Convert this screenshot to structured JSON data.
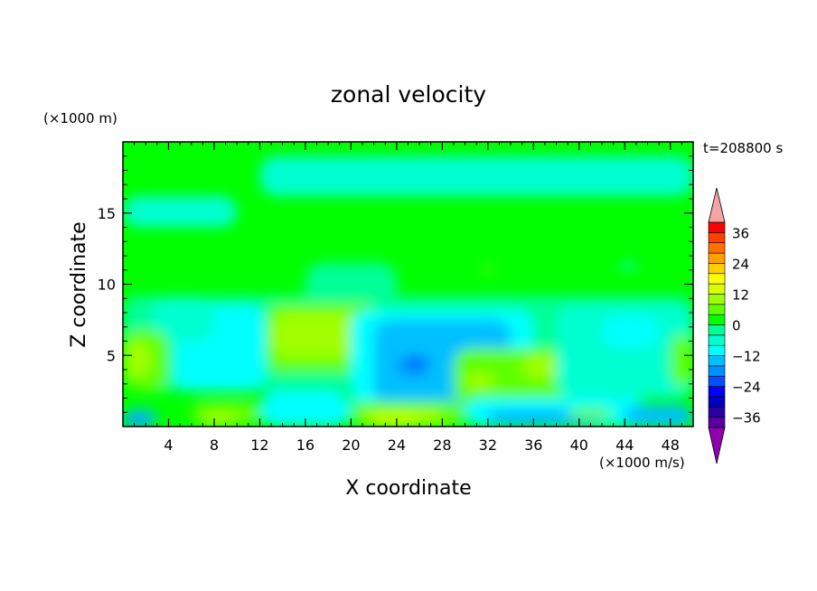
{
  "chart_data": {
    "type": "heatmap",
    "title": "zonal velocity",
    "xlabel": "X coordinate",
    "ylabel": "Z coordinate",
    "x_unit": "(×1000 m/s)",
    "y_unit": "(×1000 m)",
    "time_label": "t=208800 s",
    "xlim": [
      0,
      50
    ],
    "ylim": [
      0,
      20
    ],
    "x_ticks": [
      4,
      8,
      12,
      16,
      20,
      24,
      28,
      32,
      36,
      40,
      44,
      48
    ],
    "y_ticks": [
      5,
      10,
      15
    ],
    "colorbar": {
      "levels": [
        -40,
        -36,
        -32,
        -28,
        -24,
        -20,
        -16,
        -12,
        -8,
        -4,
        0,
        4,
        8,
        12,
        16,
        20,
        24,
        28,
        32,
        36,
        40
      ],
      "tick_labels": [
        36,
        24,
        12,
        0,
        -12,
        -24,
        -36
      ],
      "colors": [
        "#5a00a0",
        "#2a00a0",
        "#0000c0",
        "#0000ff",
        "#0050ff",
        "#0090ff",
        "#00c0ff",
        "#00ffff",
        "#00ffd0",
        "#00ff96",
        "#00ff00",
        "#60ff00",
        "#a0ff00",
        "#d8ff00",
        "#ffff00",
        "#ffd000",
        "#ffa000",
        "#ff7000",
        "#ff4000",
        "#ff0000"
      ],
      "over_color": "#f4a4a4",
      "under_color": "#9000b0"
    },
    "field": {
      "background": 2,
      "features": [
        {
          "x": [
            0,
            50
          ],
          "z": [
            2.5,
            9.2
          ],
          "value": -3
        },
        {
          "x": [
            12,
            50
          ],
          "z": [
            16.2,
            19.0
          ],
          "value": -6
        },
        {
          "x": [
            0,
            10
          ],
          "z": [
            14.0,
            16.2
          ],
          "value": -6
        },
        {
          "x": [
            16,
            24
          ],
          "z": [
            8.0,
            11.5
          ],
          "value": -4
        },
        {
          "x": [
            31.5,
            32.5
          ],
          "z": [
            10.8,
            11.3
          ],
          "value": 6
        },
        {
          "x": [
            43.5,
            45
          ],
          "z": [
            11.0,
            11.5
          ],
          "value": -5
        },
        {
          "x": [
            4.5,
            12.5
          ],
          "z": [
            2.5,
            8.5
          ],
          "value": -9
        },
        {
          "x": [
            2.5,
            8
          ],
          "z": [
            6.0,
            9.0
          ],
          "value": -6
        },
        {
          "x": [
            12.5,
            22.5
          ],
          "z": [
            3.8,
            8.7
          ],
          "value": 4
        },
        {
          "x": [
            13,
            21
          ],
          "z": [
            4.8,
            8.0
          ],
          "value": 10
        },
        {
          "x": [
            0,
            4
          ],
          "z": [
            2.5,
            6.8
          ],
          "value": 5
        },
        {
          "x": [
            0,
            2.5
          ],
          "z": [
            3.5,
            6.0
          ],
          "value": 10
        },
        {
          "x": [
            20,
            36
          ],
          "z": [
            1.2,
            8.2
          ],
          "value": -9
        },
        {
          "x": [
            22,
            34
          ],
          "z": [
            1.5,
            7.5
          ],
          "value": -13
        },
        {
          "x": [
            24,
            27
          ],
          "z": [
            3.5,
            5.0
          ],
          "value": -17
        },
        {
          "x": [
            25,
            26.5
          ],
          "z": [
            4.3,
            4.9
          ],
          "value": -21
        },
        {
          "x": [
            29,
            40
          ],
          "z": [
            1.5,
            5.5
          ],
          "value": 4
        },
        {
          "x": [
            30,
            32.5
          ],
          "z": [
            2.6,
            3.8
          ],
          "value": 10
        },
        {
          "x": [
            35,
            39
          ],
          "z": [
            3.4,
            5.0
          ],
          "value": 10
        },
        {
          "x": [
            38,
            50
          ],
          "z": [
            2.0,
            8.5
          ],
          "value": -7
        },
        {
          "x": [
            42,
            47
          ],
          "z": [
            5.5,
            7.8
          ],
          "value": -10
        },
        {
          "x": [
            48,
            50
          ],
          "z": [
            2.8,
            6.5
          ],
          "value": 6
        },
        {
          "x": [
            0,
            3
          ],
          "z": [
            0,
            1.2
          ],
          "value": -13
        },
        {
          "x": [
            0,
            2.5
          ],
          "z": [
            0,
            0.5
          ],
          "value": -17
        },
        {
          "x": [
            6,
            12
          ],
          "z": [
            0,
            1.8
          ],
          "value": 4
        },
        {
          "x": [
            7,
            10
          ],
          "z": [
            0,
            1.0
          ],
          "value": 10
        },
        {
          "x": [
            12,
            20
          ],
          "z": [
            0,
            2.5
          ],
          "value": -9
        },
        {
          "x": [
            20,
            30
          ],
          "z": [
            0,
            1.8
          ],
          "value": 4
        },
        {
          "x": [
            21,
            28
          ],
          "z": [
            0,
            1.2
          ],
          "value": 10
        },
        {
          "x": [
            22,
            26
          ],
          "z": [
            0,
            0.7
          ],
          "value": 14
        },
        {
          "x": [
            30,
            46
          ],
          "z": [
            0,
            2.0
          ],
          "value": -9
        },
        {
          "x": [
            32,
            42
          ],
          "z": [
            0,
            1.2
          ],
          "value": -13
        },
        {
          "x": [
            39,
            43
          ],
          "z": [
            0.5,
            1.3
          ],
          "value": 6
        },
        {
          "x": [
            44,
            50
          ],
          "z": [
            0,
            1.5
          ],
          "value": -13
        }
      ]
    }
  }
}
